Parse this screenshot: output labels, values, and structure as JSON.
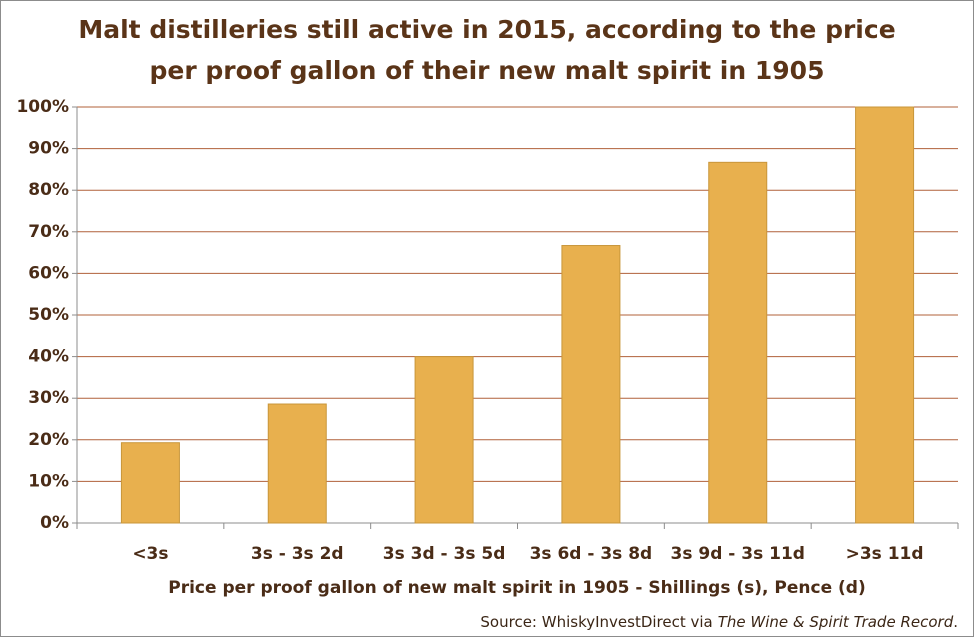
{
  "chart_data": {
    "type": "bar",
    "title": [
      "Malt distilleries still active in 2015, according to the price",
      "per proof gallon of their new malt spirit in 1905"
    ],
    "x_label": "Price per proof gallon of new malt spirit in 1905 - Shillings (s), Pence (d)",
    "source": {
      "prefix": "Source: WhiskyInvestDirect via",
      "italic": "The Wine & Spirit Trade Record",
      "suffix": "."
    },
    "categories": [
      "<3s",
      "3s - 3s 2d",
      "3s 3d - 3s 5d",
      "3s 6d - 3s 8d",
      "3s 9d - 3s 11d",
      ">3s 11d"
    ],
    "values": [
      19.3,
      28.6,
      40,
      66.7,
      86.7,
      100
    ],
    "color": "#e8b04e",
    "ylim": [
      0,
      100
    ],
    "yticks": [
      {
        "value": 0,
        "label": "0%"
      },
      {
        "value": 10,
        "label": "10%"
      },
      {
        "value": 20,
        "label": "20%"
      },
      {
        "value": 30,
        "label": "30%"
      },
      {
        "value": 40,
        "label": "40%"
      },
      {
        "value": 50,
        "label": "50%"
      },
      {
        "value": 60,
        "label": "60%"
      },
      {
        "value": 70,
        "label": "70%"
      },
      {
        "value": 80,
        "label": "80%"
      },
      {
        "value": 90,
        "label": "90%"
      },
      {
        "value": 100,
        "label": "100%"
      }
    ],
    "grid": true
  }
}
